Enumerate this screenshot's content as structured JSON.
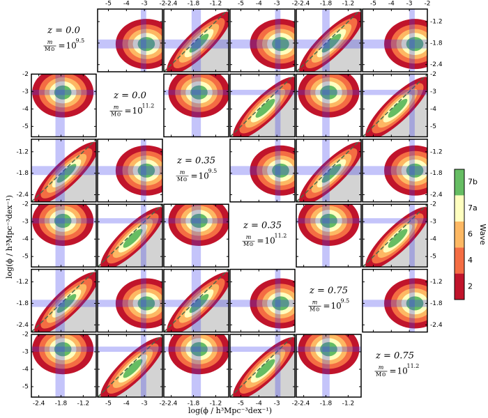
{
  "chart_data": {
    "type": "pair",
    "xlabel": "log(ϕ / h³Mpc⁻³dex⁻¹)",
    "ylabel": "log(ϕ / h³Mpc⁻³dex⁻¹)",
    "mass_label": {
      "num": "m",
      "den": "M⊙",
      "base": "10"
    },
    "variables": [
      {
        "z": "z = 0.0",
        "exponent": "9.5",
        "lim": [
          -2.6,
          -0.85
        ],
        "ticks": [
          -2.4,
          -1.8,
          -1.2
        ],
        "band": [
          -1.95,
          -1.7
        ]
      },
      {
        "z": "z = 0.0",
        "exponent": "11.2",
        "lim": [
          -5.6,
          -2
        ],
        "ticks": [
          -5,
          -4,
          -3,
          -2
        ],
        "band": [
          -3.2,
          -2.9
        ]
      },
      {
        "z": "z = 0.35",
        "exponent": "9.5",
        "lim": [
          -2.6,
          -0.85
        ],
        "ticks": [
          -2.4,
          -1.8,
          -1.2
        ],
        "band": [
          -1.85,
          -1.6
        ]
      },
      {
        "z": "z = 0.35",
        "exponent": "11.2",
        "lim": [
          -5.6,
          -2
        ],
        "ticks": [
          -5,
          -4,
          -3,
          -2
        ],
        "band": [
          -3.1,
          -2.8
        ]
      },
      {
        "z": "z = 0.75",
        "exponent": "9.5",
        "lim": [
          -2.6,
          -0.85
        ],
        "ticks": [
          -2.4,
          -1.8,
          -1.2
        ],
        "band": [
          -1.9,
          -1.7
        ]
      },
      {
        "z": "z = 0.75",
        "exponent": "11.2",
        "lim": [
          -5.6,
          -2
        ],
        "ticks": [
          -5,
          -4,
          -3,
          -2
        ],
        "band": [
          -3.0,
          -2.7
        ]
      }
    ],
    "colorbar": {
      "label": "Wave",
      "levels": [
        "2",
        "4",
        "6",
        "7a",
        "7b"
      ],
      "colors": [
        "#c0142b",
        "#f46d43",
        "#fdb863",
        "#ffffbf",
        "#66bd63"
      ]
    }
  }
}
